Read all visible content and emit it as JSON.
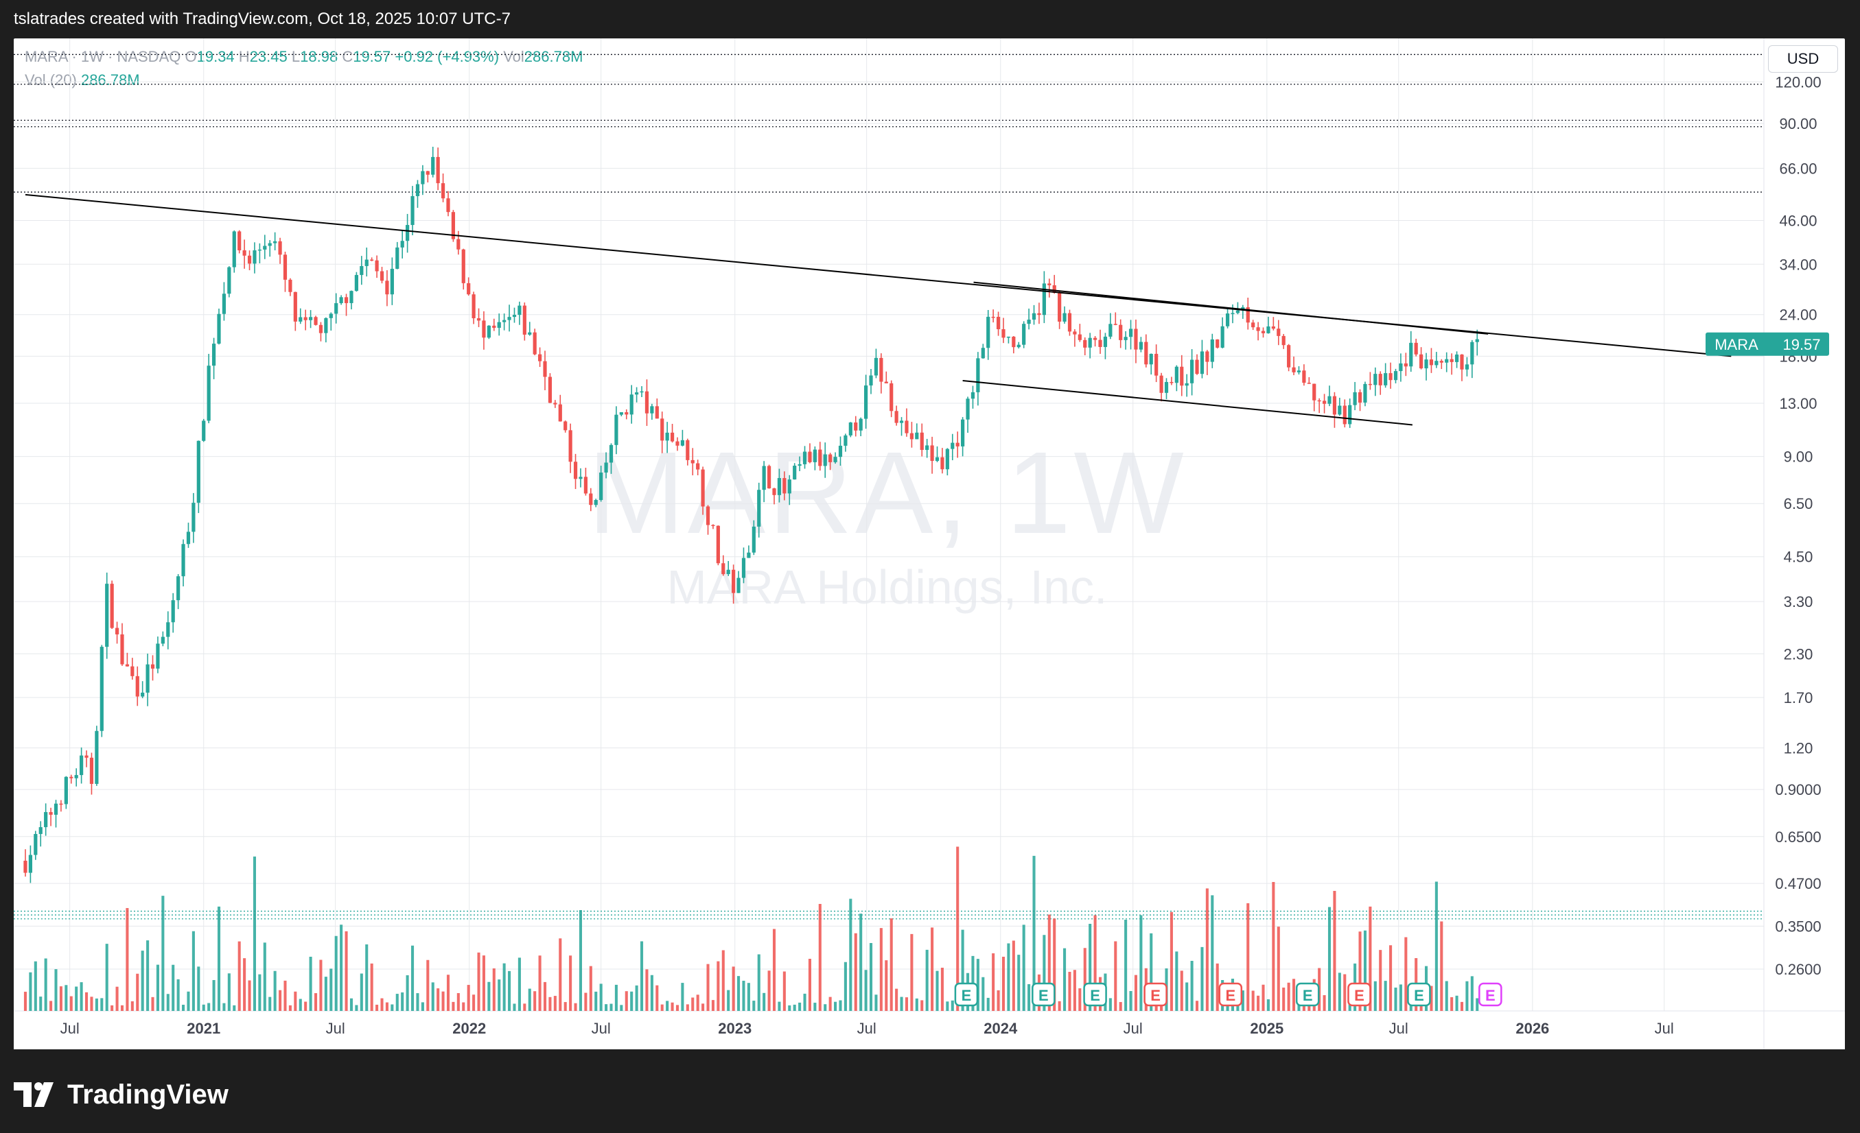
{
  "header": {
    "credit": "tslatrades created with TradingView.com, Oct 18, 2025 10:07 UTC-7"
  },
  "legend": {
    "symbol": "MARA · 1W · NASDAQ",
    "open_label": "O",
    "open": "19.34",
    "high_label": "H",
    "high": "23.45",
    "low_label": "L",
    "low": "18.98",
    "close_label": "C",
    "close": "19.57",
    "change": "+0.92 (+4.93%)",
    "vol_label": "Vol",
    "vol": "286.78M",
    "vol_indicator_label": "Vol (20)",
    "vol_indicator_value": "286.78M"
  },
  "currency": "USD",
  "watermark": {
    "ticker": "MARA, 1W",
    "company": "MARA Holdings, Inc."
  },
  "footer": {
    "brand": "TradingView"
  },
  "colors": {
    "up": "#26a69a",
    "down": "#ef5350",
    "earnings_up": "#26a69a",
    "earnings_down": "#ef5350",
    "earnings_next": "#e040fb",
    "grid": "#e6e8ec",
    "trendline": "#000000"
  },
  "chart_data": {
    "type": "candlestick",
    "symbol": "MARA",
    "interval": "1W",
    "scale": "log",
    "x_tick_labels": [
      {
        "label": "Jul",
        "date": "2020-07-01",
        "bold": false
      },
      {
        "label": "2021",
        "date": "2021-01-01",
        "bold": true
      },
      {
        "label": "Jul",
        "date": "2021-07-01",
        "bold": false
      },
      {
        "label": "2022",
        "date": "2022-01-01",
        "bold": true
      },
      {
        "label": "Jul",
        "date": "2022-07-01",
        "bold": false
      },
      {
        "label": "2023",
        "date": "2023-01-01",
        "bold": true
      },
      {
        "label": "Jul",
        "date": "2023-07-01",
        "bold": false
      },
      {
        "label": "2024",
        "date": "2024-01-01",
        "bold": true
      },
      {
        "label": "Jul",
        "date": "2024-07-01",
        "bold": false
      },
      {
        "label": "2025",
        "date": "2025-01-01",
        "bold": true
      },
      {
        "label": "Jul",
        "date": "2025-07-01",
        "bold": false
      },
      {
        "label": "2026",
        "date": "2026-01-01",
        "bold": true
      },
      {
        "label": "Jul",
        "date": "2026-07-01",
        "bold": false
      }
    ],
    "y_tick_labels": [
      "120.00",
      "90.00",
      "66.00",
      "46.00",
      "34.00",
      "24.00",
      "18.00",
      "13.00",
      "9.00",
      "6.50",
      "4.50",
      "3.30",
      "2.30",
      "1.70",
      "1.20",
      "0.9000",
      "0.6500",
      "0.4700",
      "0.3500",
      "0.2600"
    ],
    "last_price": {
      "label": "MARA",
      "value": "19.57"
    },
    "price_keyframes": [
      [
        "2020-05-01",
        0.55
      ],
      [
        "2020-06-15",
        0.85
      ],
      [
        "2020-07-20",
        1.1
      ],
      [
        "2020-08-01",
        0.95
      ],
      [
        "2020-08-20",
        3.6
      ],
      [
        "2020-09-10",
        2.2
      ],
      [
        "2020-10-05",
        1.8
      ],
      [
        "2020-11-10",
        2.6
      ],
      [
        "2020-12-15",
        6.2
      ],
      [
        "2021-01-10",
        18.0
      ],
      [
        "2021-02-10",
        40.0
      ],
      [
        "2021-03-05",
        35.0
      ],
      [
        "2021-04-05",
        42.0
      ],
      [
        "2021-05-10",
        22.0
      ],
      [
        "2021-06-20",
        22.0
      ],
      [
        "2021-08-10",
        35.0
      ],
      [
        "2021-09-10",
        30.0
      ],
      [
        "2021-10-20",
        56.0
      ],
      [
        "2021-11-10",
        70.0
      ],
      [
        "2021-12-10",
        40.0
      ],
      [
        "2022-01-20",
        20.0
      ],
      [
        "2022-03-10",
        24.0
      ],
      [
        "2022-04-10",
        17.0
      ],
      [
        "2022-05-20",
        9.0
      ],
      [
        "2022-06-20",
        6.0
      ],
      [
        "2022-07-25",
        12.0
      ],
      [
        "2022-08-20",
        14.0
      ],
      [
        "2022-09-20",
        11.0
      ],
      [
        "2022-11-05",
        9.0
      ],
      [
        "2022-12-15",
        4.0
      ],
      [
        "2023-01-05",
        3.6
      ],
      [
        "2023-02-10",
        8.0
      ],
      [
        "2023-03-10",
        7.0
      ],
      [
        "2023-04-10",
        9.0
      ],
      [
        "2023-05-20",
        8.5
      ],
      [
        "2023-06-20",
        12.0
      ],
      [
        "2023-07-15",
        17.0
      ],
      [
        "2023-08-20",
        11.0
      ],
      [
        "2023-10-10",
        8.5
      ],
      [
        "2023-11-10",
        11.0
      ],
      [
        "2023-12-20",
        25.0
      ],
      [
        "2024-01-20",
        19.0
      ],
      [
        "2024-02-15",
        23.0
      ],
      [
        "2024-03-05",
        30.0
      ],
      [
        "2024-04-10",
        20.0
      ],
      [
        "2024-05-10",
        19.0
      ],
      [
        "2024-06-10",
        22.0
      ],
      [
        "2024-07-10",
        20.0
      ],
      [
        "2024-08-10",
        15.0
      ],
      [
        "2024-09-15",
        16.0
      ],
      [
        "2024-10-20",
        19.0
      ],
      [
        "2024-11-20",
        26.0
      ],
      [
        "2024-12-15",
        23.0
      ],
      [
        "2025-01-15",
        20.0
      ],
      [
        "2025-02-15",
        15.0
      ],
      [
        "2025-03-20",
        13.0
      ],
      [
        "2025-04-15",
        12.0
      ],
      [
        "2025-05-20",
        15.0
      ],
      [
        "2025-06-20",
        15.0
      ],
      [
        "2025-07-20",
        19.0
      ],
      [
        "2025-08-15",
        16.0
      ],
      [
        "2025-09-20",
        17.0
      ],
      [
        "2025-10-18",
        19.57
      ]
    ],
    "earnings_markers": [
      {
        "date": "2023-11-15",
        "type": "E",
        "color": "up"
      },
      {
        "date": "2024-02-29",
        "type": "E",
        "color": "up"
      },
      {
        "date": "2024-05-10",
        "type": "E",
        "color": "up"
      },
      {
        "date": "2024-08-01",
        "type": "E",
        "color": "down"
      },
      {
        "date": "2024-11-12",
        "type": "E",
        "color": "down"
      },
      {
        "date": "2025-02-26",
        "type": "E",
        "color": "up"
      },
      {
        "date": "2025-05-08",
        "type": "E",
        "color": "down"
      },
      {
        "date": "2025-07-29",
        "type": "E",
        "color": "up"
      },
      {
        "date": "2025-11-04",
        "type": "E",
        "color": "next"
      }
    ],
    "trendlines": [
      {
        "from": [
          "2020-05-01",
          55.0
        ],
        "to": [
          "2026-10-01",
          18.0
        ]
      },
      {
        "from": [
          "2023-11-25",
          30.0
        ],
        "to": [
          "2025-11-01",
          21.0
        ]
      },
      {
        "from": [
          "2023-11-10",
          15.2
        ],
        "to": [
          "2025-07-20",
          11.2
        ]
      }
    ],
    "horizontal_dotted_levels": [
      145,
      118,
      92,
      88,
      56,
      0.388,
      0.378,
      0.368
    ]
  }
}
